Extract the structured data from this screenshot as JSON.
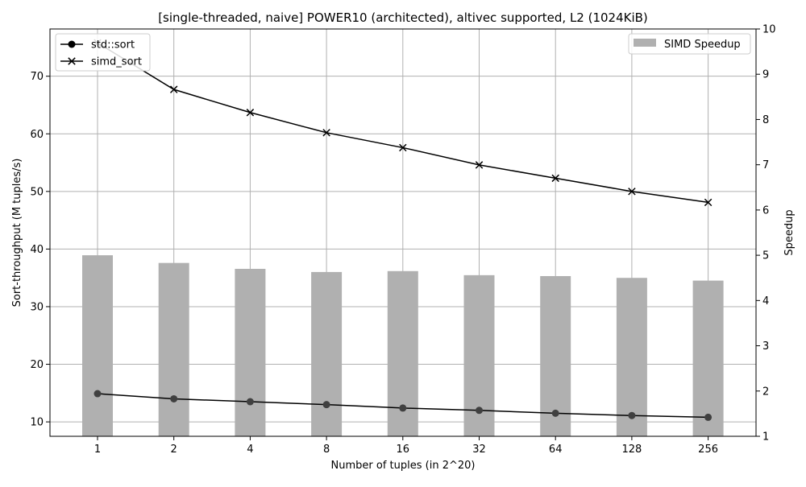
{
  "chart_data": {
    "type": "bar",
    "title": "[single-threaded, naive] POWER10 (architected), altivec supported, L2 (1024KiB)",
    "xlabel": "Number of tuples (in 2^20)",
    "ylabel": "Sort-throughput (M tuples/s)",
    "ylabel_right": "Speedup",
    "categories": [
      "1",
      "2",
      "4",
      "8",
      "16",
      "32",
      "64",
      "128",
      "256"
    ],
    "ylim": [
      7.5,
      78.2
    ],
    "yticks": [
      10,
      20,
      30,
      40,
      50,
      60,
      70
    ],
    "ylim_right": [
      1,
      10
    ],
    "yticks_right": [
      1,
      2,
      3,
      4,
      5,
      6,
      7,
      8,
      9,
      10
    ],
    "grid": true,
    "series": [
      {
        "name": "std::sort",
        "kind": "line",
        "marker": "o",
        "axis": "left",
        "values": [
          14.9,
          14.0,
          13.5,
          13.0,
          12.4,
          12.0,
          11.5,
          11.1,
          10.8
        ]
      },
      {
        "name": "simd_sort",
        "kind": "line",
        "marker": "x",
        "axis": "left",
        "values": [
          75.8,
          67.7,
          63.7,
          60.2,
          57.6,
          54.6,
          52.3,
          50.0,
          48.1
        ]
      },
      {
        "name": "SIMD Speedup",
        "kind": "bar",
        "axis": "right",
        "values": [
          5.0,
          4.83,
          4.7,
          4.63,
          4.65,
          4.56,
          4.54,
          4.5,
          4.44
        ]
      }
    ],
    "legend_left": [
      "std::sort",
      "simd_sort"
    ],
    "legend_right": [
      "SIMD Speedup"
    ],
    "legend_placement_left": "top-left",
    "legend_placement_right": "top-right",
    "colors": {
      "lines": "#000000",
      "bars": "#b0b0b0",
      "grid": "#b0b0b0",
      "markers_o": "#404040"
    }
  }
}
